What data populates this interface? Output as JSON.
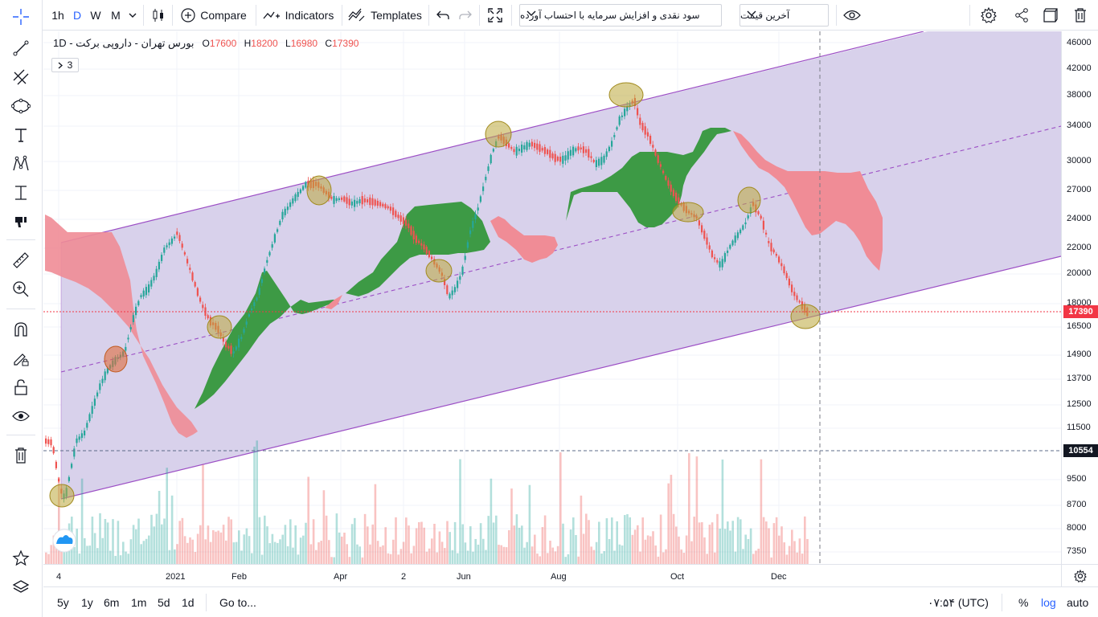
{
  "toolbar": {
    "intervals": [
      "1h",
      "D",
      "W",
      "M"
    ],
    "selected_interval": "D",
    "compare_label": "Compare",
    "indicators_label": "Indicators",
    "templates_label": "Templates",
    "strategy_select": "سود نقدی و افزایش سرمایه با احتساب آورده",
    "price_type_select": "آخرین قیمت",
    "icons": [
      "crosshair-icon",
      "candles-icon",
      "plus-circle-icon",
      "indicators-icon",
      "templates-icon",
      "undo-icon",
      "redo-icon",
      "fullscreen-icon",
      "eye-icon",
      "gear-icon",
      "share-icon",
      "snapshot-icon",
      "trash-icon"
    ]
  },
  "left_tools": [
    "cursor-icon",
    "trend-line-icon",
    "fib-icon",
    "ellipse-icon",
    "text-icon",
    "pattern-icon",
    "measure-icon",
    "sticker-icon",
    "ruler-icon",
    "zoom-icon",
    "magnet-icon",
    "lock-drawing-icon",
    "unlock-icon",
    "eye-icon",
    "trash-icon",
    "star-icon",
    "layers-icon"
  ],
  "legend": {
    "symbol": "بورس تهران - داروپی برکت - 1D",
    "open_label": "O",
    "open": "17600",
    "high_label": "H",
    "high": "18200",
    "low_label": "L",
    "low": "16980",
    "close_label": "C",
    "close": "17390",
    "indicator_count": "3"
  },
  "price_axis": {
    "labels": [
      "46000",
      "42000",
      "38000",
      "34000",
      "30000",
      "27000",
      "24000",
      "22000",
      "20000",
      "18000",
      "16500",
      "14900",
      "13700",
      "12500",
      "11500",
      "9500",
      "8700",
      "8000",
      "7350"
    ],
    "current_price": "17390",
    "current_price_color": "#f23645",
    "marker_price": "10554",
    "marker_color": "#131722"
  },
  "time_axis": {
    "labels": [
      "4",
      "2021",
      "Feb",
      "Apr",
      "2",
      "Jun",
      "Aug",
      "Oct",
      "Dec"
    ]
  },
  "bottom_bar": {
    "ranges": [
      "5y",
      "1y",
      "6m",
      "1m",
      "5d",
      "1d"
    ],
    "goto_label": "Go to...",
    "clock": "۰۷:۵۴ (UTC)",
    "percent_label": "%",
    "log_label": "log",
    "auto_label": "auto"
  },
  "colors": {
    "bull": "#26a69a",
    "bear": "#ef5350",
    "cloud_green": "#3d9a45",
    "cloud_red": "#f08c96",
    "channel_fill": "#d6cfea",
    "channel_line": "#9c4fc5",
    "accent": "#2962ff"
  },
  "chart_data": {
    "type": "candlestick",
    "title": "",
    "price_scale": "log",
    "annotations": [
      "parallel-channel",
      "ichimoku-cloud",
      "ellipse-highlights"
    ],
    "last_price": 17390,
    "marker_line": 10554
  }
}
